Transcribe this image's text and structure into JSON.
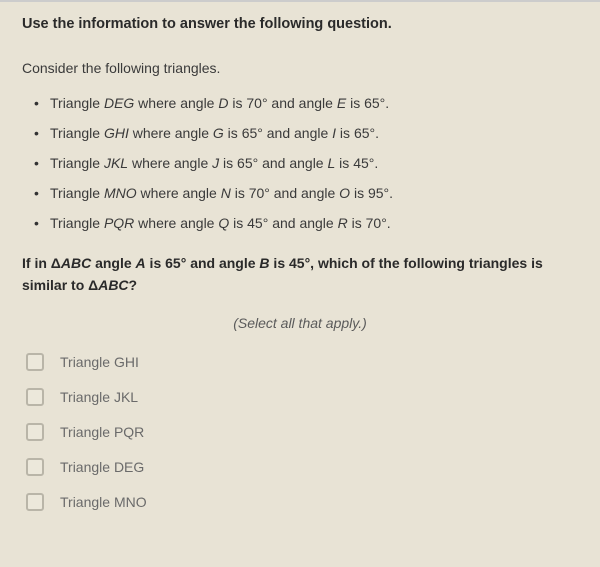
{
  "header": "Use the information to answer the following question.",
  "intro": "Consider the following triangles.",
  "triangles": [
    {
      "name": "DEG",
      "a1l": "D",
      "a1v": "70°",
      "a2l": "E",
      "a2v": "65°"
    },
    {
      "name": "GHI",
      "a1l": "G",
      "a1v": "65°",
      "a2l": "I",
      "a2v": "65°"
    },
    {
      "name": "JKL",
      "a1l": "J",
      "a1v": "65°",
      "a2l": "L",
      "a2v": "45°"
    },
    {
      "name": "MNO",
      "a1l": "N",
      "a1v": "70°",
      "a2l": "O",
      "a2v": "95°"
    },
    {
      "name": "PQR",
      "a1l": "Q",
      "a1v": "45°",
      "a2l": "R",
      "a2v": "70°"
    }
  ],
  "question_prefix": "If in Δ",
  "question_tri": "ABC",
  "question_mid1": " angle ",
  "question_a1l": "A",
  "question_a1txt": " is 65° and angle ",
  "question_a2l": "B",
  "question_a2txt": " is 45°, which of the following triangles is similar to Δ",
  "question_tri2": "ABC",
  "question_suffix": "?",
  "select_hint": "(Select all that apply.)",
  "options": [
    {
      "label": "Triangle GHI"
    },
    {
      "label": "Triangle JKL"
    },
    {
      "label": "Triangle PQR"
    },
    {
      "label": "Triangle DEG"
    },
    {
      "label": "Triangle MNO"
    }
  ],
  "colors": {
    "background": "#e8e3d5",
    "text_primary": "#333333",
    "text_muted": "#6a6a6a",
    "checkbox_border": "#b9b5a8"
  }
}
